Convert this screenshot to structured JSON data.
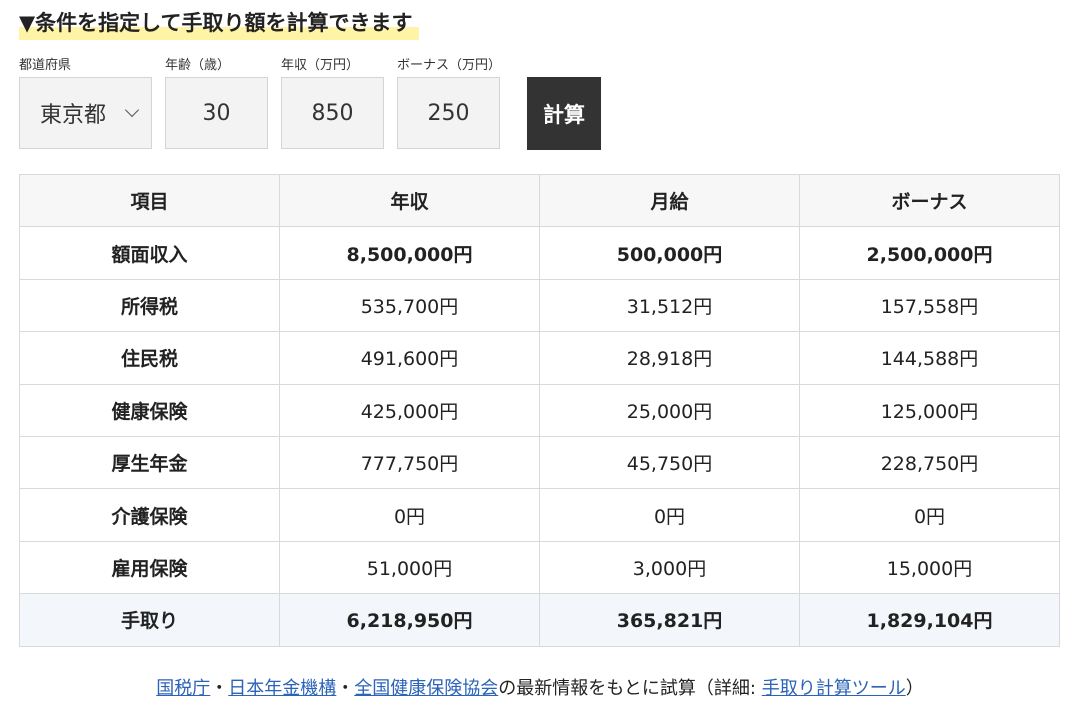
{
  "heading": "▼条件を指定して手取り額を計算できます",
  "form": {
    "prefecture_label": "都道府県",
    "age_label": "年齢（歳）",
    "income_label": "年収（万円）",
    "bonus_label": "ボーナス（万円）",
    "prefecture_value": "東京都",
    "age_value": "30",
    "income_value": "850",
    "bonus_value": "250",
    "calc_label": "計算"
  },
  "table": {
    "headers": [
      "項目",
      "年収",
      "月給",
      "ボーナス"
    ],
    "rows": [
      [
        "額面収入",
        "8,500,000円",
        "500,000円",
        "2,500,000円"
      ],
      [
        "所得税",
        "535,700円",
        "31,512円",
        "157,558円"
      ],
      [
        "住民税",
        "491,600円",
        "28,918円",
        "144,588円"
      ],
      [
        "健康保険",
        "425,000円",
        "25,000円",
        "125,000円"
      ],
      [
        "厚生年金",
        "777,750円",
        "45,750円",
        "228,750円"
      ],
      [
        "介護保険",
        "0円",
        "0円",
        "0円"
      ],
      [
        "雇用保険",
        "51,000円",
        "3,000円",
        "15,000円"
      ],
      [
        "手取り",
        "6,218,950円",
        "365,821円",
        "1,829,104円"
      ]
    ]
  },
  "footer": {
    "link1": "国税庁",
    "sep1": "・",
    "link2": "日本年金機構",
    "sep2": "・",
    "link3": "全国健康保険協会",
    "text1": "の最新情報をもとに試算（詳細: ",
    "link4": "手取り計算ツール",
    "text2": "）"
  },
  "colors": {
    "highlight": "#fff3a6",
    "button": "#333333",
    "link": "#2b63b8",
    "total_row_bg": "#f3f7fb"
  }
}
